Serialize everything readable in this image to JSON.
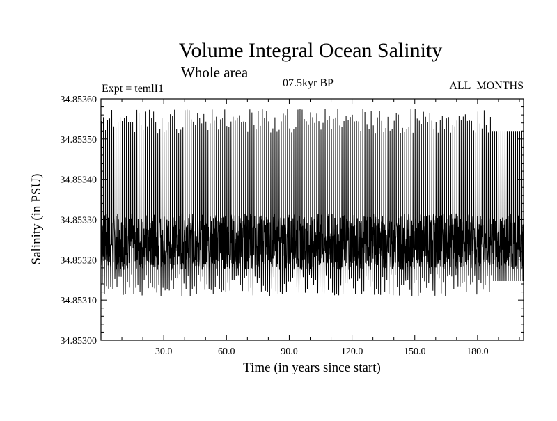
{
  "chart_data": {
    "type": "line",
    "title": "Volume Integral Ocean Salinity",
    "subtitle": "Whole area",
    "experiment": "Expt = temlI1",
    "period": "07.5kyr BP",
    "months": "ALL_MONTHS",
    "xlabel": "Time (in years since start)",
    "ylabel": "Salinity (in PSU)",
    "xlim": [
      0,
      202
    ],
    "ylim": [
      34.853,
      34.8536
    ],
    "x_ticks": [
      30,
      60,
      90,
      120,
      150,
      180
    ],
    "x_tick_labels": [
      "30.0",
      "60.0",
      "90.0",
      "120.0",
      "150.0",
      "180.0"
    ],
    "y_ticks": [
      34.853,
      34.8531,
      34.8532,
      34.8533,
      34.8534,
      34.8535,
      34.8536
    ],
    "y_tick_labels": [
      "34.85300",
      "34.85310",
      "34.85320",
      "34.85330",
      "34.85340",
      "34.85350",
      "34.85360"
    ],
    "series": [
      {
        "sampling": "monthly, seasonal cycle each year",
        "mean": 34.853245,
        "annual_peak_range": [
          34.853515,
          34.853575
        ],
        "annual_trough_range": [
          34.85311,
          34.853165
        ],
        "final_years_peak": 34.85352,
        "final_years_trough": 34.853147
      }
    ],
    "grid": false,
    "legend": "none",
    "line_color": "#000000"
  }
}
